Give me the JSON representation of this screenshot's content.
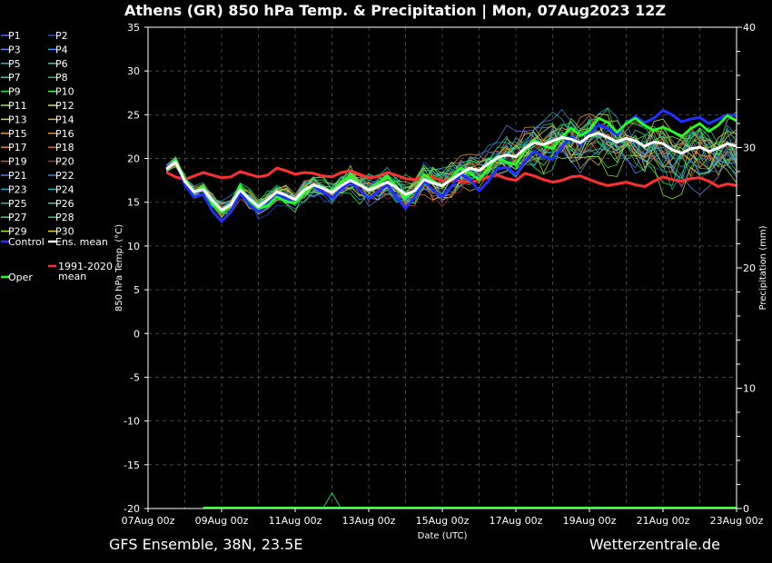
{
  "header": {
    "title": "Athens  (GR)  850 hPa Temp. & Precipitation | Mon, 07Aug2023 12Z"
  },
  "footer": {
    "left": "GFS Ensemble, 38N, 23.5E",
    "right": "Wetterzentrale.de"
  },
  "chart_data": {
    "type": "line",
    "title": "Athens  (GR)  850 hPa Temp. & Precipitation | Mon, 07Aug2023 12Z",
    "xlabel": "Date (UTC)",
    "ylabel": "850 hPa Temp. (°C)",
    "y2label": "Precipitation (mm)",
    "ylim": [
      -20,
      35
    ],
    "y2lim": [
      0,
      40
    ],
    "y_ticks": [
      "35",
      "30",
      "25",
      "20",
      "15",
      "10",
      "5",
      "0",
      "-5",
      "-10",
      "-15",
      "-20"
    ],
    "y2_ticks": [
      "40",
      "30",
      "20",
      "10",
      "0"
    ],
    "x_ticks": [
      "07Aug 00z",
      "09Aug 00z",
      "11Aug 00z",
      "13Aug 00z",
      "15Aug 00z",
      "17Aug 00z",
      "19Aug 00z",
      "21Aug 00z",
      "23Aug 00z"
    ],
    "grid": true,
    "legend_position": "left",
    "legend": [
      {
        "name": "P1",
        "color": "#4a6cff"
      },
      {
        "name": "P2",
        "color": "#2a4cd8"
      },
      {
        "name": "P3",
        "color": "#6a8cff"
      },
      {
        "name": "P4",
        "color": "#3a9cff"
      },
      {
        "name": "P5",
        "color": "#22b8d8"
      },
      {
        "name": "P6",
        "color": "#22d8a8"
      },
      {
        "name": "P7",
        "color": "#3ad88a"
      },
      {
        "name": "P8",
        "color": "#2ac860"
      },
      {
        "name": "P9",
        "color": "#22e84a"
      },
      {
        "name": "P10",
        "color": "#44ff44"
      },
      {
        "name": "P11",
        "color": "#a8e84a"
      },
      {
        "name": "P12",
        "color": "#d8e84a"
      },
      {
        "name": "P13",
        "color": "#e8d040"
      },
      {
        "name": "P14",
        "color": "#e8b830"
      },
      {
        "name": "P15",
        "color": "#e8a040"
      },
      {
        "name": "P16",
        "color": "#d89040"
      },
      {
        "name": "P17",
        "color": "#e88040"
      },
      {
        "name": "P18",
        "color": "#d86838"
      },
      {
        "name": "P19",
        "color": "#d85048"
      },
      {
        "name": "P20",
        "color": "#b83030"
      },
      {
        "name": "P21",
        "color": "#5a78e8"
      },
      {
        "name": "P22",
        "color": "#3a88d8"
      },
      {
        "name": "P23",
        "color": "#22a8c8"
      },
      {
        "name": "P24",
        "color": "#22b8b8"
      },
      {
        "name": "P25",
        "color": "#22c898"
      },
      {
        "name": "P26",
        "color": "#2ad8a0"
      },
      {
        "name": "P27",
        "color": "#3ae070"
      },
      {
        "name": "P28",
        "color": "#2ad858"
      },
      {
        "name": "P29",
        "color": "#a8e83a"
      },
      {
        "name": "P30",
        "color": "#e8d030"
      },
      {
        "name": "Control",
        "color": "#2030ff"
      },
      {
        "name": "Ens. mean",
        "color": "#ffffff"
      },
      {
        "name": "Oper",
        "color": "#22ff22"
      },
      {
        "name": "1991-2020 mean",
        "color": "#ff3030"
      }
    ],
    "x_hours": [
      12,
      18,
      24,
      30,
      36,
      42,
      48,
      54,
      60,
      66,
      72,
      78,
      84,
      90,
      96,
      102,
      108,
      114,
      120,
      126,
      132,
      138,
      144,
      150,
      156,
      162,
      168,
      174,
      180,
      186,
      192,
      198,
      204,
      210,
      216,
      222,
      228,
      234,
      240,
      246,
      252,
      258,
      264,
      270,
      276,
      282,
      288,
      294,
      300,
      306,
      312,
      318,
      324,
      330,
      336,
      342,
      348,
      354,
      360,
      366,
      372,
      378,
      384
    ],
    "series": [
      {
        "name": "Ens. mean",
        "color": "#ffffff",
        "values": [
          18.8,
          19.6,
          17.4,
          16.2,
          16.5,
          15.2,
          14.1,
          14.7,
          16.4,
          15.4,
          14.5,
          15.3,
          16.2,
          15.8,
          15.3,
          16.4,
          17.0,
          16.6,
          16.1,
          16.9,
          17.5,
          17.0,
          16.4,
          16.8,
          17.3,
          16.7,
          15.9,
          16.3,
          17.6,
          17.2,
          16.9,
          17.6,
          18.3,
          18.9,
          18.6,
          19.4,
          20.1,
          20.4,
          20.2,
          21.2,
          21.8,
          21.6,
          22.0,
          22.4,
          22.2,
          21.8,
          22.6,
          22.9,
          22.4,
          21.9,
          22.3,
          22.0,
          21.4,
          21.9,
          21.7,
          21.0,
          20.6,
          21.1,
          21.3,
          20.8,
          21.2,
          21.7,
          21.4
        ]
      },
      {
        "name": "Control",
        "color": "#2030ff",
        "values": [
          18.9,
          19.8,
          17.0,
          15.6,
          15.9,
          14.0,
          12.8,
          13.9,
          16.0,
          14.8,
          13.9,
          14.7,
          15.8,
          15.5,
          14.8,
          16.1,
          16.8,
          16.2,
          15.5,
          16.5,
          17.3,
          16.4,
          15.4,
          16.2,
          17.0,
          15.6,
          14.3,
          15.6,
          17.4,
          16.4,
          15.6,
          16.8,
          18.2,
          17.6,
          16.3,
          17.4,
          18.8,
          19.0,
          18.2,
          19.6,
          20.8,
          20.2,
          19.9,
          21.3,
          22.5,
          21.6,
          22.8,
          23.9,
          23.4,
          22.7,
          24.0,
          24.8,
          24.1,
          24.6,
          25.5,
          25.0,
          24.2,
          24.5,
          24.7,
          24.0,
          24.5,
          25.0,
          24.9
        ]
      },
      {
        "name": "Oper",
        "color": "#22ff22",
        "values": [
          18.7,
          19.9,
          17.6,
          16.2,
          16.8,
          14.8,
          13.9,
          14.6,
          16.9,
          15.2,
          14.3,
          14.6,
          15.6,
          15.1,
          14.9,
          16.0,
          16.9,
          16.7,
          16.2,
          17.3,
          18.0,
          17.1,
          16.5,
          17.1,
          18.0,
          16.8,
          15.5,
          16.4,
          18.2,
          17.4,
          16.8,
          17.8,
          18.9,
          18.3,
          17.6,
          18.9,
          20.1,
          19.6,
          19.3,
          20.9,
          22.1,
          21.5,
          21.1,
          22.5,
          23.5,
          22.6,
          23.2,
          24.6,
          24.1,
          23.0,
          24.0,
          24.6,
          23.8,
          23.2,
          23.6,
          23.1,
          22.5,
          23.4,
          24.0,
          23.1,
          23.8,
          24.9,
          24.3
        ]
      },
      {
        "name": "1991-2020 mean",
        "color": "#ff3030",
        "values": [
          18.4,
          17.9,
          17.6,
          18.0,
          18.4,
          18.1,
          17.8,
          17.9,
          18.5,
          18.2,
          17.9,
          18.1,
          18.9,
          18.6,
          18.2,
          18.4,
          18.3,
          18.0,
          17.9,
          18.4,
          18.6,
          18.2,
          17.8,
          17.9,
          18.4,
          18.1,
          17.7,
          17.6,
          18.0,
          17.8,
          17.5,
          17.6,
          17.4,
          17.3,
          17.5,
          17.9,
          18.1,
          17.7,
          17.5,
          18.3,
          18.0,
          17.6,
          17.3,
          17.5,
          17.9,
          18.0,
          17.6,
          17.2,
          16.9,
          17.1,
          17.3,
          17.0,
          16.8,
          17.4,
          17.9,
          17.6,
          17.4,
          17.7,
          17.8,
          17.4,
          16.8,
          17.1,
          16.9
        ]
      }
    ]
  }
}
